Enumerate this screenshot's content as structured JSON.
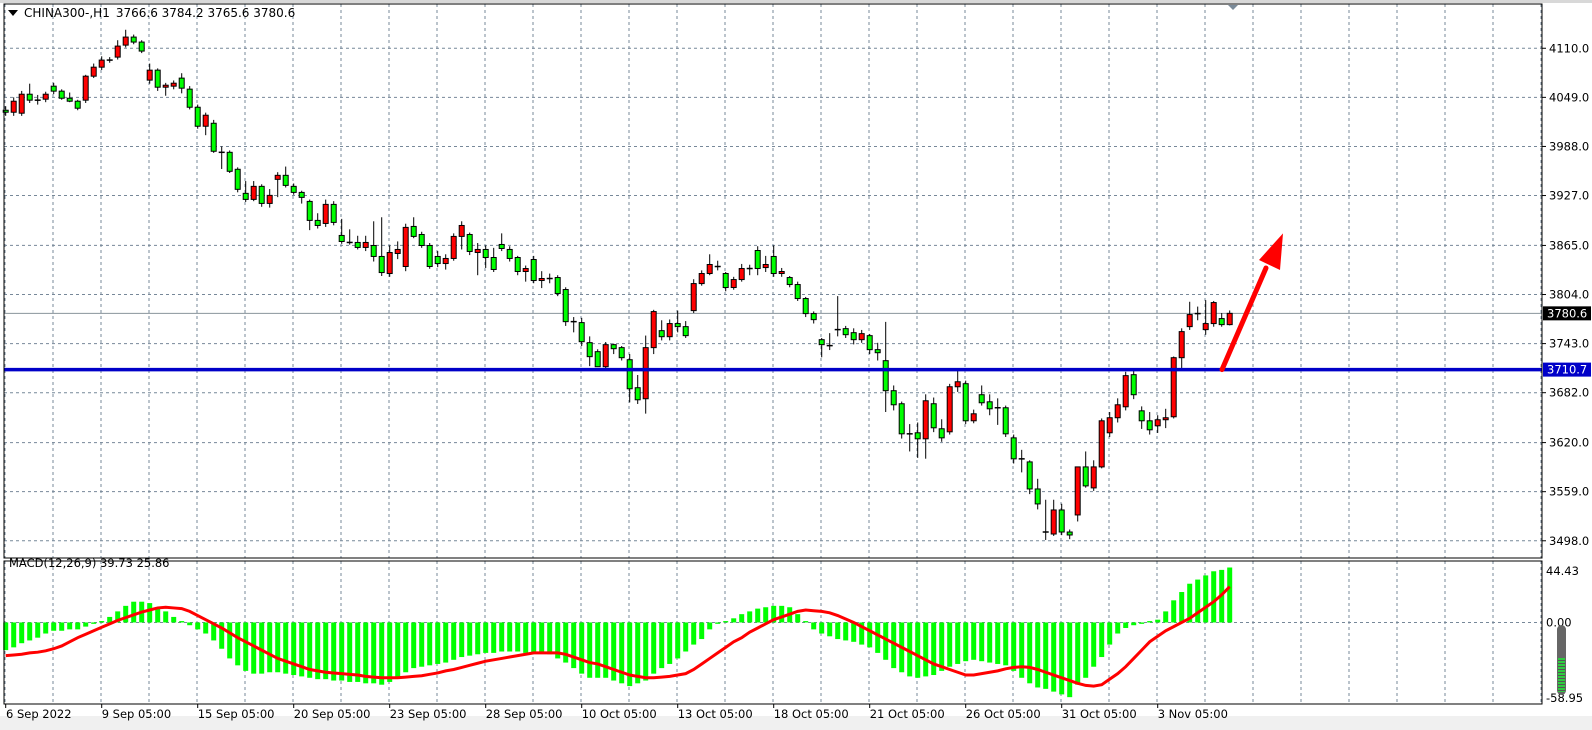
{
  "header": {
    "symbol": "CHINA300-,H1",
    "ohlc": "3766.6 3784.2 3765.6 3780.6"
  },
  "macd_label": "MACD(12,26,9) 39.73 25.86",
  "colors": {
    "bull_candle": "#ff0000",
    "bear_candle": "#00ff00",
    "histogram": "#00ff00",
    "signal": "#ff0000",
    "support_line": "#0000c8",
    "arrow": "#ff0000",
    "grid": "#778899"
  },
  "chart_data": [
    {
      "type": "candlestick",
      "title": "CHINA300-,H1",
      "ylim": [
        3476.6,
        4165.0
      ],
      "grid": true,
      "price_labels": [
        "4110.0",
        "4049.0",
        "3988.0",
        "3927.0",
        "3865.0",
        "3804.0",
        "3743.0",
        "3682.0",
        "3620.0",
        "3559.0",
        "3498.0"
      ],
      "time_labels": [
        "6 Sep 2022",
        "9 Sep 05:00",
        "15 Sep 05:00",
        "20 Sep 05:00",
        "23 Sep 05:00",
        "28 Sep 05:00",
        "10 Oct 05:00",
        "13 Oct 05:00",
        "18 Oct 05:00",
        "21 Oct 05:00",
        "26 Oct 05:00",
        "31 Oct 05:00",
        "3 Nov 05:00"
      ],
      "current_price": "3780.6",
      "horizontal_line": {
        "price": "3710.7",
        "color": "#0000c8"
      },
      "arrow": {
        "from_price": 3710.7,
        "to_price": 3880,
        "direction": "up"
      },
      "ohlc": [
        [
          4033.0,
          4038,
          4026,
          4030.5
        ],
        [
          4030.5,
          4049,
          4026,
          4044.2
        ],
        [
          4029.3,
          4057,
          4026,
          4052.9
        ],
        [
          4052.9,
          4066,
          4042,
          4045.5
        ],
        [
          4045.5,
          4052,
          4040,
          4045.5
        ],
        [
          4046.7,
          4056,
          4043,
          4052.9
        ],
        [
          4062.9,
          4067,
          4053,
          4056.7
        ],
        [
          4056.7,
          4059,
          4046,
          4047.9
        ],
        [
          4047.9,
          4055,
          4043,
          4044.2
        ],
        [
          4044.2,
          4046,
          4033,
          4035.5
        ],
        [
          4045.5,
          4077,
          4042,
          4075.3
        ],
        [
          4075.3,
          4091,
          4073,
          4086.5
        ],
        [
          4086.5,
          4100,
          4083,
          4095.3
        ],
        [
          4095.3,
          4099,
          4092,
          4095.3
        ],
        [
          4099.0,
          4120,
          4096,
          4112.7
        ],
        [
          4113.9,
          4133,
          4111,
          4123.9
        ],
        [
          4123.9,
          4127,
          4115,
          4117.7
        ],
        [
          4117.7,
          4120,
          4104,
          4106.5
        ],
        [
          4070.4,
          4091,
          4066,
          4082.8
        ],
        [
          4082.8,
          4085,
          4057,
          4061.6
        ],
        [
          4061.6,
          4067,
          4051,
          4064.1
        ],
        [
          4062.9,
          4070,
          4059,
          4066.6
        ],
        [
          4072.9,
          4079,
          4054,
          4060.4
        ],
        [
          4059.2,
          4063,
          4034,
          4036.7
        ],
        [
          4036.7,
          4040,
          4010,
          4013.1
        ],
        [
          4013.1,
          4030,
          4002,
          4026.8
        ],
        [
          4016.8,
          4021,
          3980,
          3982.0
        ],
        [
          3980.7,
          3988,
          3960,
          3980.7
        ],
        [
          3980.7,
          3983,
          3955,
          3957.1
        ],
        [
          3959.6,
          3962,
          3931,
          3934.7
        ],
        [
          3929.7,
          3945,
          3919,
          3922.2
        ],
        [
          3922.2,
          3945,
          3920,
          3938.4
        ],
        [
          3938.4,
          3941,
          3913,
          3917.2
        ],
        [
          3917.2,
          3935,
          3912,
          3927.2
        ],
        [
          3947.1,
          3956,
          3925,
          3952.1
        ],
        [
          3952.1,
          3963,
          3937,
          3939.6
        ],
        [
          3938.4,
          3942,
          3928,
          3930.9
        ],
        [
          3930.9,
          3933,
          3917,
          3924.7
        ],
        [
          3919.7,
          3922,
          3884,
          3896.1
        ],
        [
          3896.1,
          3905,
          3886,
          3889.8
        ],
        [
          3892.3,
          3922,
          3888,
          3916.0
        ],
        [
          3916.0,
          3920,
          3890,
          3893.6
        ],
        [
          3877.4,
          3898,
          3867,
          3869.9
        ],
        [
          3868.7,
          3885,
          3866,
          3868.7
        ],
        [
          3868.7,
          3877,
          3860,
          3862.5
        ],
        [
          3862.5,
          3877,
          3858,
          3868.7
        ],
        [
          3864.9,
          3895,
          3845,
          3851.3
        ],
        [
          3851.3,
          3900,
          3827,
          3831.3
        ],
        [
          3830.1,
          3865,
          3826,
          3856.2
        ],
        [
          3855.0,
          3870,
          3848,
          3860.0
        ],
        [
          3838.8,
          3892,
          3833,
          3887.4
        ],
        [
          3888.6,
          3900,
          3874,
          3876.2
        ],
        [
          3878.6,
          3882,
          3862,
          3864.9
        ],
        [
          3864.9,
          3868,
          3836,
          3838.8
        ],
        [
          3851.3,
          3858,
          3838,
          3842.5
        ],
        [
          3842.5,
          3854,
          3835,
          3848.8
        ],
        [
          3848.8,
          3880,
          3846,
          3876.2
        ],
        [
          3876.2,
          3895,
          3860,
          3889.8
        ],
        [
          3878.6,
          3881,
          3853,
          3857.5
        ],
        [
          3856.2,
          3868,
          3828,
          3860.0
        ],
        [
          3860.0,
          3865,
          3837,
          3850.0
        ],
        [
          3850.0,
          3862,
          3832,
          3835.1
        ],
        [
          3866.2,
          3880,
          3858,
          3861.2
        ],
        [
          3860.0,
          3864,
          3845,
          3848.8
        ],
        [
          3850.0,
          3852,
          3828,
          3832.6
        ],
        [
          3832.6,
          3840,
          3820,
          3836.3
        ],
        [
          3847.5,
          3852,
          3818,
          3821.4
        ],
        [
          3821.4,
          3833,
          3812,
          3823.9
        ],
        [
          3823.9,
          3830,
          3818,
          3823.9
        ],
        [
          3825.1,
          3828,
          3802,
          3805.2
        ],
        [
          3810.2,
          3813,
          3765,
          3770.3
        ],
        [
          3770.3,
          3776,
          3757,
          3770.3
        ],
        [
          3769.1,
          3775,
          3740,
          3745.4
        ],
        [
          3744.2,
          3752,
          3715,
          3726.8
        ],
        [
          3733.0,
          3736,
          3714,
          3714.3
        ],
        [
          3714.3,
          3745,
          3712,
          3741.7
        ],
        [
          3741.7,
          3743,
          3730,
          3736.7
        ],
        [
          3738.0,
          3740,
          3722,
          3725.5
        ],
        [
          3723.0,
          3730,
          3670,
          3686.9
        ],
        [
          3688.2,
          3704,
          3668,
          3673.2
        ],
        [
          3674.5,
          3753,
          3656,
          3738.0
        ],
        [
          3738.0,
          3785,
          3730,
          3782.8
        ],
        [
          3759.1,
          3772,
          3747,
          3751.6
        ],
        [
          3751.6,
          3773,
          3747,
          3767.9
        ],
        [
          3767.9,
          3784,
          3757,
          3764.1
        ],
        [
          3764.1,
          3771,
          3750,
          3752.9
        ],
        [
          3784.0,
          3823,
          3781,
          3817.6
        ],
        [
          3817.6,
          3834,
          3815,
          3830.1
        ],
        [
          3830.1,
          3854,
          3828,
          3841.3
        ],
        [
          3838.8,
          3846,
          3834,
          3838.8
        ],
        [
          3830.1,
          3832,
          3808,
          3812.7
        ],
        [
          3812.7,
          3826,
          3810,
          3822.6
        ],
        [
          3822.6,
          3842,
          3820,
          3836.3
        ],
        [
          3836.3,
          3841,
          3828,
          3836.3
        ],
        [
          3858.7,
          3864,
          3828,
          3836.3
        ],
        [
          3837.5,
          3852,
          3832,
          3841.3
        ],
        [
          3851.3,
          3865,
          3826,
          3830.1
        ],
        [
          3830.1,
          3837,
          3826,
          3832.6
        ],
        [
          3825.1,
          3827,
          3813,
          3816.4
        ],
        [
          3816.4,
          3820,
          3796,
          3799.0
        ],
        [
          3799.0,
          3801,
          3776,
          3780.3
        ],
        [
          3780.3,
          3783,
          3768,
          3772.8
        ],
        [
          3747.9,
          3750,
          3726,
          3741.7
        ],
        [
          3740.5,
          3756,
          3735,
          3740.5
        ],
        [
          3760.4,
          3802,
          3752,
          3760.4
        ],
        [
          3761.6,
          3765,
          3750,
          3754.1
        ],
        [
          3756.6,
          3762,
          3742,
          3747.9
        ],
        [
          3747.9,
          3760,
          3744,
          3755.4
        ],
        [
          3752.9,
          3755,
          3730,
          3735.5
        ],
        [
          3735.5,
          3744,
          3722,
          3731.7
        ],
        [
          3721.8,
          3770,
          3658,
          3684.5
        ],
        [
          3684.5,
          3691,
          3660,
          3667.0
        ],
        [
          3668.3,
          3671,
          3625,
          3630.9
        ],
        [
          3630.9,
          3643,
          3609,
          3630.9
        ],
        [
          3632.2,
          3645,
          3601,
          3624.7
        ],
        [
          3624.7,
          3680,
          3600,
          3672.0
        ],
        [
          3668.3,
          3676,
          3633,
          3638.4
        ],
        [
          3637.2,
          3649,
          3621,
          3625.9
        ],
        [
          3633.4,
          3693,
          3630,
          3689.4
        ],
        [
          3689.4,
          3710,
          3683,
          3695.6
        ],
        [
          3693.2,
          3697,
          3643,
          3647.1
        ],
        [
          3647.1,
          3661,
          3644,
          3655.8
        ],
        [
          3679.5,
          3691,
          3666,
          3669.5
        ],
        [
          3670.7,
          3680,
          3654,
          3662.0
        ],
        [
          3663.3,
          3675,
          3642,
          3663.3
        ],
        [
          3663.3,
          3666,
          3627,
          3630.9
        ],
        [
          3625.9,
          3630,
          3594,
          3599.8
        ],
        [
          3599.8,
          3611,
          3583,
          3599.8
        ],
        [
          3596.0,
          3598,
          3556,
          3562.4
        ],
        [
          3562.4,
          3575,
          3537,
          3543.8
        ],
        [
          3508.9,
          3549,
          3499,
          3508.9
        ],
        [
          3506.4,
          3549,
          3504,
          3536.3
        ],
        [
          3536.3,
          3544,
          3505,
          3508.9
        ],
        [
          3508.9,
          3512,
          3500,
          3505.2
        ],
        [
          3530.1,
          3590,
          3522,
          3589.8
        ],
        [
          3589.8,
          3609,
          3564,
          3566.2
        ],
        [
          3563.7,
          3598,
          3560,
          3589.8
        ],
        [
          3589.8,
          3650,
          3588,
          3647.1
        ],
        [
          3632.2,
          3658,
          3627,
          3650.9
        ],
        [
          3650.9,
          3675,
          3645,
          3667.0
        ],
        [
          3664.5,
          3708,
          3660,
          3703.2
        ],
        [
          3704.4,
          3711,
          3674,
          3679.5
        ],
        [
          3659.5,
          3665,
          3637,
          3647.1
        ],
        [
          3647.1,
          3658,
          3630,
          3635.9
        ],
        [
          3640.9,
          3654,
          3632,
          3648.4
        ],
        [
          3648.4,
          3662,
          3638,
          3650.9
        ],
        [
          3652.1,
          3727,
          3650,
          3725.5
        ],
        [
          3725.5,
          3762,
          3710,
          3757.9
        ],
        [
          3764.1,
          3795,
          3760,
          3779.1
        ],
        [
          3780.3,
          3789,
          3772,
          3780.3
        ],
        [
          3760.4,
          3797,
          3754,
          3767.9
        ],
        [
          3767.9,
          3796,
          3764,
          3794.0
        ],
        [
          3774.1,
          3781,
          3764,
          3766.6
        ],
        [
          3766.6,
          3784.2,
          3765.6,
          3780.6
        ]
      ]
    },
    {
      "type": "bar+line",
      "title": "MACD(12,26,9)",
      "ylim": [
        -58.95,
        44.43
      ],
      "axis_labels": [
        "44.43",
        "0.00",
        "-58.95"
      ],
      "main_value": "39.73",
      "signal_value": "25.86",
      "histogram": [
        -20,
        -18,
        -15,
        -13,
        -11,
        -8,
        -6,
        -6,
        -5,
        -5,
        -3,
        -1,
        1,
        4,
        8,
        12,
        15,
        15,
        14,
        11,
        8,
        4,
        1,
        -2,
        -5,
        -8,
        -13,
        -19,
        -26,
        -31,
        -35,
        -37,
        -37,
        -36,
        -36,
        -37,
        -38,
        -39,
        -40,
        -41,
        -41,
        -42,
        -42,
        -43,
        -43,
        -44,
        -44,
        -45,
        -43,
        -40,
        -36,
        -33,
        -32,
        -31,
        -30,
        -29,
        -27,
        -25,
        -24,
        -23,
        -22,
        -22,
        -21,
        -21,
        -21,
        -22,
        -22,
        -22,
        -23,
        -26,
        -29,
        -33,
        -37,
        -40,
        -40,
        -40,
        -42,
        -44,
        -46,
        -44,
        -42,
        -37,
        -33,
        -30,
        -26,
        -21,
        -16,
        -12,
        -5,
        -1,
        1,
        3,
        6,
        8,
        10,
        11,
        12,
        12,
        11,
        6,
        1,
        -5,
        -8,
        -10,
        -12,
        -13,
        -14,
        -16,
        -18,
        -22,
        -27,
        -33,
        -36,
        -39,
        -40,
        -39,
        -38,
        -35,
        -32,
        -30,
        -28,
        -27,
        -28,
        -29,
        -30,
        -31,
        -35,
        -40,
        -44,
        -47,
        -48,
        -50,
        -52,
        -54,
        -45,
        -40,
        -32,
        -25,
        -16,
        -8,
        -4,
        -2,
        -1,
        1,
        2,
        8,
        16,
        22,
        28,
        31,
        34,
        37,
        38,
        39.73
      ],
      "signal": [
        -24,
        -23.5,
        -23,
        -22,
        -21.5,
        -20.5,
        -19,
        -17,
        -14,
        -11,
        -8.5,
        -6,
        -3.5,
        -1,
        1.5,
        3.5,
        5.5,
        7.5,
        9,
        10.5,
        11,
        10.5,
        10,
        8,
        5,
        2,
        -1,
        -4,
        -7.5,
        -11,
        -14,
        -17,
        -20,
        -23,
        -26,
        -28,
        -30,
        -32,
        -34,
        -35,
        -36,
        -36.5,
        -37,
        -37.5,
        -38,
        -39,
        -39.5,
        -40,
        -40,
        -40,
        -39.5,
        -39,
        -38.5,
        -37.5,
        -36.5,
        -35,
        -34,
        -32.5,
        -31,
        -29.5,
        -28,
        -27,
        -26,
        -25,
        -24,
        -23,
        -22,
        -22,
        -22,
        -22,
        -23,
        -25,
        -27,
        -29,
        -30,
        -32,
        -34,
        -36,
        -38,
        -39,
        -40,
        -40,
        -39.5,
        -39,
        -38,
        -37,
        -34,
        -30,
        -26,
        -22,
        -18,
        -14,
        -11,
        -7,
        -4,
        -1,
        2,
        4,
        6,
        8,
        9,
        8.5,
        8,
        7,
        5,
        2.5,
        0,
        -3,
        -6,
        -9,
        -12,
        -15,
        -18,
        -21,
        -24,
        -27,
        -30,
        -32,
        -34,
        -36,
        -38,
        -38,
        -37,
        -36,
        -35,
        -33.5,
        -32.5,
        -32,
        -32.5,
        -34,
        -36,
        -38,
        -40,
        -42,
        -44,
        -45.5,
        -46,
        -45,
        -41,
        -37,
        -32,
        -26,
        -20,
        -14,
        -10,
        -6,
        -3,
        0,
        3,
        7,
        11,
        15,
        20,
        25.86
      ]
    }
  ]
}
